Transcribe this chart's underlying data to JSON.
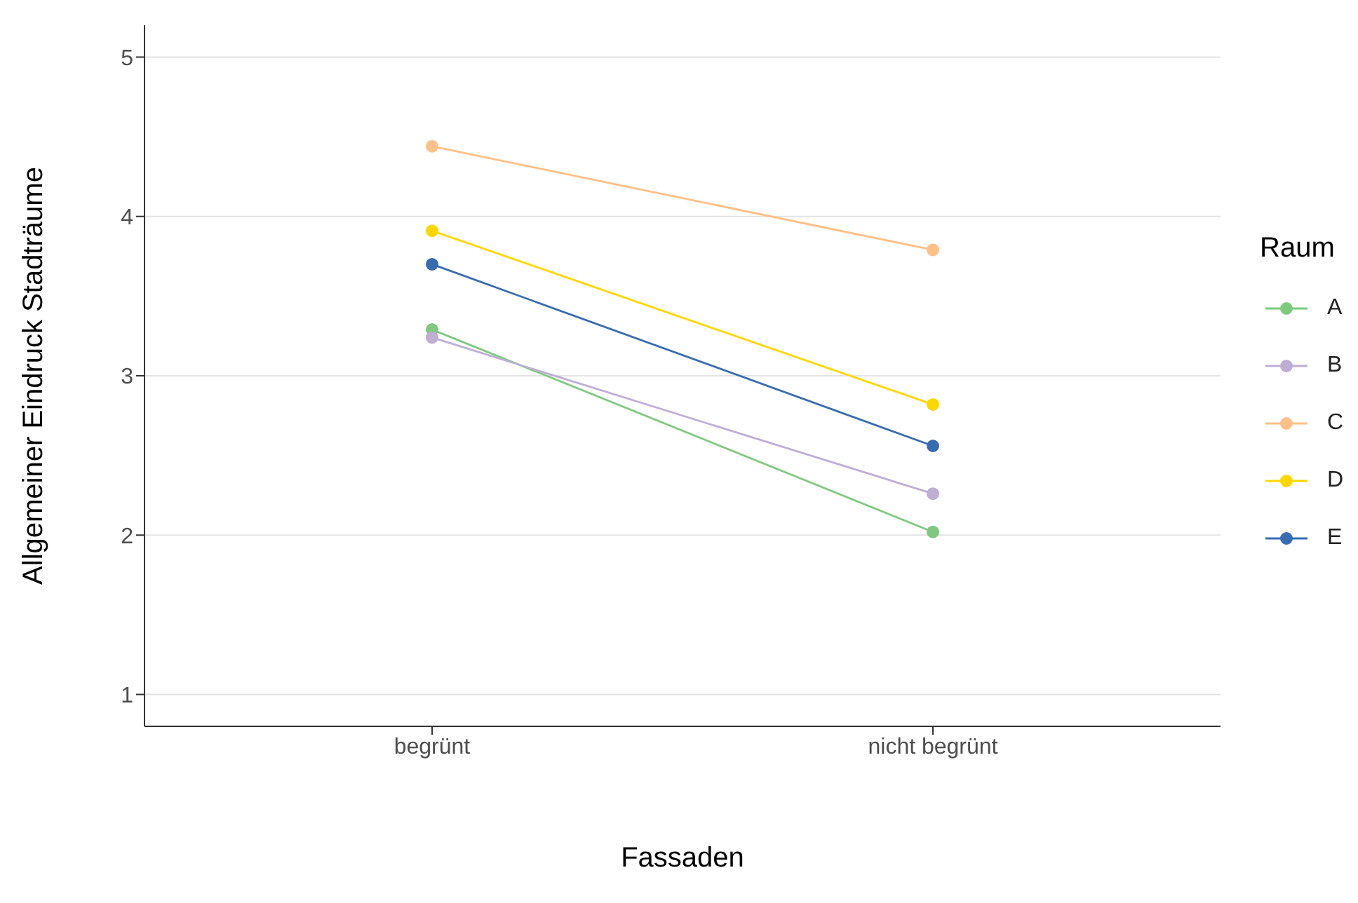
{
  "chart_data": {
    "type": "line",
    "xlabel": "Fassaden",
    "ylabel": "Allgemeiner Eindruck Stadträume",
    "legend_title": "Raum",
    "categories": [
      "begrünt",
      "nicht begrünt"
    ],
    "series": [
      {
        "name": "A",
        "color": "#7fc97f",
        "values": [
          3.29,
          2.02
        ]
      },
      {
        "name": "B",
        "color": "#beaed4",
        "values": [
          3.24,
          2.26
        ]
      },
      {
        "name": "C",
        "color": "#fdc086",
        "values": [
          4.44,
          3.79
        ]
      },
      {
        "name": "D",
        "color": "#ffd700",
        "values": [
          3.91,
          2.82
        ]
      },
      {
        "name": "E",
        "color": "#386cb0",
        "values": [
          3.7,
          2.56
        ]
      }
    ],
    "ylim": [
      0.8,
      5.2
    ],
    "yticks": [
      1,
      2,
      3,
      4,
      5
    ],
    "grid": "y",
    "legend": "right",
    "marker": "circle",
    "line_style": "solid"
  }
}
